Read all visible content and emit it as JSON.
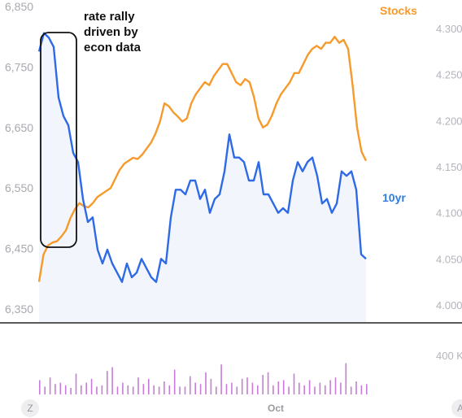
{
  "chart_data": [
    {
      "type": "line",
      "title": "",
      "grid": false,
      "left_axis": {
        "ticks": [
          "6,350",
          "6,450",
          "6,550",
          "6,650",
          "6,750",
          "6,850"
        ],
        "ylim": [
          6350,
          6850
        ]
      },
      "right_axis": {
        "ticks": [
          "4.000",
          "4.050",
          "4.100",
          "4.150",
          "4.200",
          "4.250",
          "4.300"
        ],
        "ylim": [
          3995,
          4.31
        ]
      },
      "x_ticks": [
        "Oct"
      ],
      "series": [
        {
          "name": "Stocks",
          "axis": "left",
          "color": "#f59a2b",
          "values": [
            6395,
            6440,
            6455,
            6460,
            6462,
            6470,
            6480,
            6500,
            6515,
            6525,
            6520,
            6518,
            6525,
            6535,
            6540,
            6545,
            6550,
            6565,
            6580,
            6590,
            6595,
            6600,
            6598,
            6605,
            6615,
            6625,
            6640,
            6660,
            6690,
            6685,
            6675,
            6668,
            6660,
            6665,
            6690,
            6705,
            6715,
            6725,
            6720,
            6735,
            6745,
            6755,
            6755,
            6740,
            6725,
            6720,
            6730,
            6725,
            6700,
            6665,
            6650,
            6655,
            6670,
            6690,
            6705,
            6715,
            6725,
            6740,
            6740,
            6755,
            6770,
            6780,
            6785,
            6780,
            6790,
            6790,
            6800,
            6790,
            6795,
            6780,
            6720,
            6650,
            6610,
            6595
          ]
        },
        {
          "name": "10yr",
          "axis": "right",
          "color": "#2e6ae6",
          "values": [
            4.275,
            4.295,
            4.29,
            4.28,
            4.225,
            4.205,
            4.195,
            4.165,
            4.155,
            4.115,
            4.09,
            4.095,
            4.06,
            4.045,
            4.06,
            4.045,
            4.035,
            4.025,
            4.045,
            4.03,
            4.035,
            4.05,
            4.04,
            4.03,
            4.025,
            4.05,
            4.045,
            4.095,
            4.125,
            4.125,
            4.12,
            4.135,
            4.135,
            4.115,
            4.125,
            4.1,
            4.115,
            4.12,
            4.145,
            4.185,
            4.16,
            4.16,
            4.155,
            4.135,
            4.135,
            4.155,
            4.12,
            4.12,
            4.11,
            4.1,
            4.105,
            4.1,
            4.135,
            4.155,
            4.145,
            4.155,
            4.16,
            4.14,
            4.11,
            4.115,
            4.1,
            4.11,
            4.145,
            4.14,
            4.145,
            4.125,
            4.055,
            4.05
          ]
        }
      ],
      "annotations": [
        {
          "text_lines": [
            "rate rally",
            "driven by",
            "econ data"
          ]
        }
      ]
    },
    {
      "type": "bar",
      "title": "",
      "y_ticks": [
        "400 K"
      ],
      "ylim": [
        0,
        500000
      ],
      "color": "#c77dd8",
      "values": [
        110000,
        60000,
        130000,
        80000,
        90000,
        70000,
        50000,
        160000,
        70000,
        90000,
        120000,
        60000,
        70000,
        180000,
        210000,
        60000,
        90000,
        70000,
        60000,
        130000,
        80000,
        120000,
        70000,
        60000,
        100000,
        70000,
        190000,
        60000,
        60000,
        140000,
        90000,
        80000,
        170000,
        120000,
        60000,
        230000,
        80000,
        90000,
        60000,
        120000,
        130000,
        90000,
        70000,
        150000,
        170000,
        70000,
        100000,
        110000,
        60000,
        160000,
        90000,
        70000,
        110000,
        60000,
        90000,
        70000,
        110000,
        130000,
        90000,
        240000,
        60000,
        100000,
        70000,
        80000
      ]
    }
  ]
}
